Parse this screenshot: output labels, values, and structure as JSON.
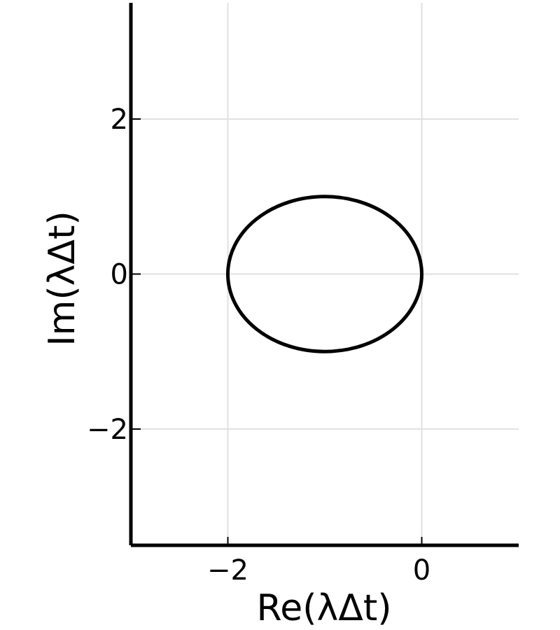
{
  "chart_data": {
    "type": "line",
    "title": "",
    "xlabel": "Re(λΔt)",
    "ylabel": "Im(λΔt)",
    "xlim": [
      -3.0,
      1.0
    ],
    "ylim": [
      -3.5,
      3.5
    ],
    "x_ticks": [
      -2,
      0
    ],
    "x_tick_labels": [
      "−2",
      "0"
    ],
    "y_ticks": [
      -2,
      0,
      2
    ],
    "y_tick_labels": [
      "−2",
      "0",
      "2"
    ],
    "grid": true,
    "legend": "none",
    "series": [
      {
        "shape": "circle",
        "center": [
          -1,
          0
        ],
        "radius": 1,
        "color": "#000000"
      }
    ]
  }
}
